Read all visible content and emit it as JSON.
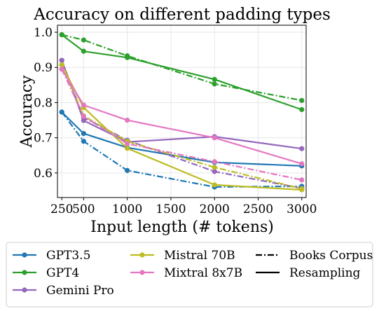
{
  "chart_data": {
    "type": "line",
    "title": "Accuracy on different padding types",
    "xlabel": "Input length (# tokens)",
    "ylabel": "Accuracy",
    "x": [
      250,
      500,
      1000,
      2000,
      3000
    ],
    "xlim": [
      200,
      3050
    ],
    "ylim": [
      0.53,
      1.02
    ],
    "xticks": [
      250,
      500,
      1000,
      1500,
      2000,
      2500,
      3000
    ],
    "yticks": [
      0.6,
      0.7,
      0.8,
      0.9,
      1.0
    ],
    "xtick_labels": [
      "250",
      "500",
      "1000",
      "1500",
      "2000",
      "2500",
      "3000"
    ],
    "ytick_labels": [
      "0.6",
      "0.7",
      "0.8",
      "0.9",
      "1.0"
    ],
    "grid": true,
    "legend_placement": "bottom-outside",
    "series": [
      {
        "name": "GPT3.5",
        "color": "#1f77b4",
        "resampling": [
          0.773,
          0.712,
          0.672,
          0.63,
          0.62
        ],
        "books_corpus": [
          0.773,
          0.69,
          0.607,
          0.56,
          0.562
        ]
      },
      {
        "name": "GPT4",
        "color": "#2ca02c",
        "resampling": [
          0.993,
          0.946,
          0.928,
          0.866,
          0.78
        ],
        "books_corpus": [
          0.993,
          0.978,
          0.933,
          0.853,
          0.806
        ]
      },
      {
        "name": "Gemini Pro",
        "color": "#9467bd",
        "resampling": [
          0.92,
          0.749,
          0.688,
          0.703,
          0.669
        ],
        "books_corpus": [
          0.92,
          0.757,
          0.693,
          0.604,
          0.556
        ]
      },
      {
        "name": "Mistral 70B",
        "color": "#bcbd22",
        "resampling": [
          0.907,
          0.786,
          0.67,
          0.566,
          0.552
        ],
        "books_corpus": [
          0.907,
          0.762,
          0.69,
          0.616,
          0.555
        ]
      },
      {
        "name": "Mixtral 8x7B",
        "color": "#e377c2",
        "resampling": [
          0.895,
          0.793,
          0.75,
          0.7,
          0.626
        ],
        "books_corpus": [
          0.895,
          0.761,
          0.683,
          0.632,
          0.58
        ]
      }
    ],
    "line_styles": [
      {
        "name": "Books Corpus",
        "dash": "dash-dot"
      },
      {
        "name": "Resampling",
        "dash": "solid"
      }
    ]
  }
}
